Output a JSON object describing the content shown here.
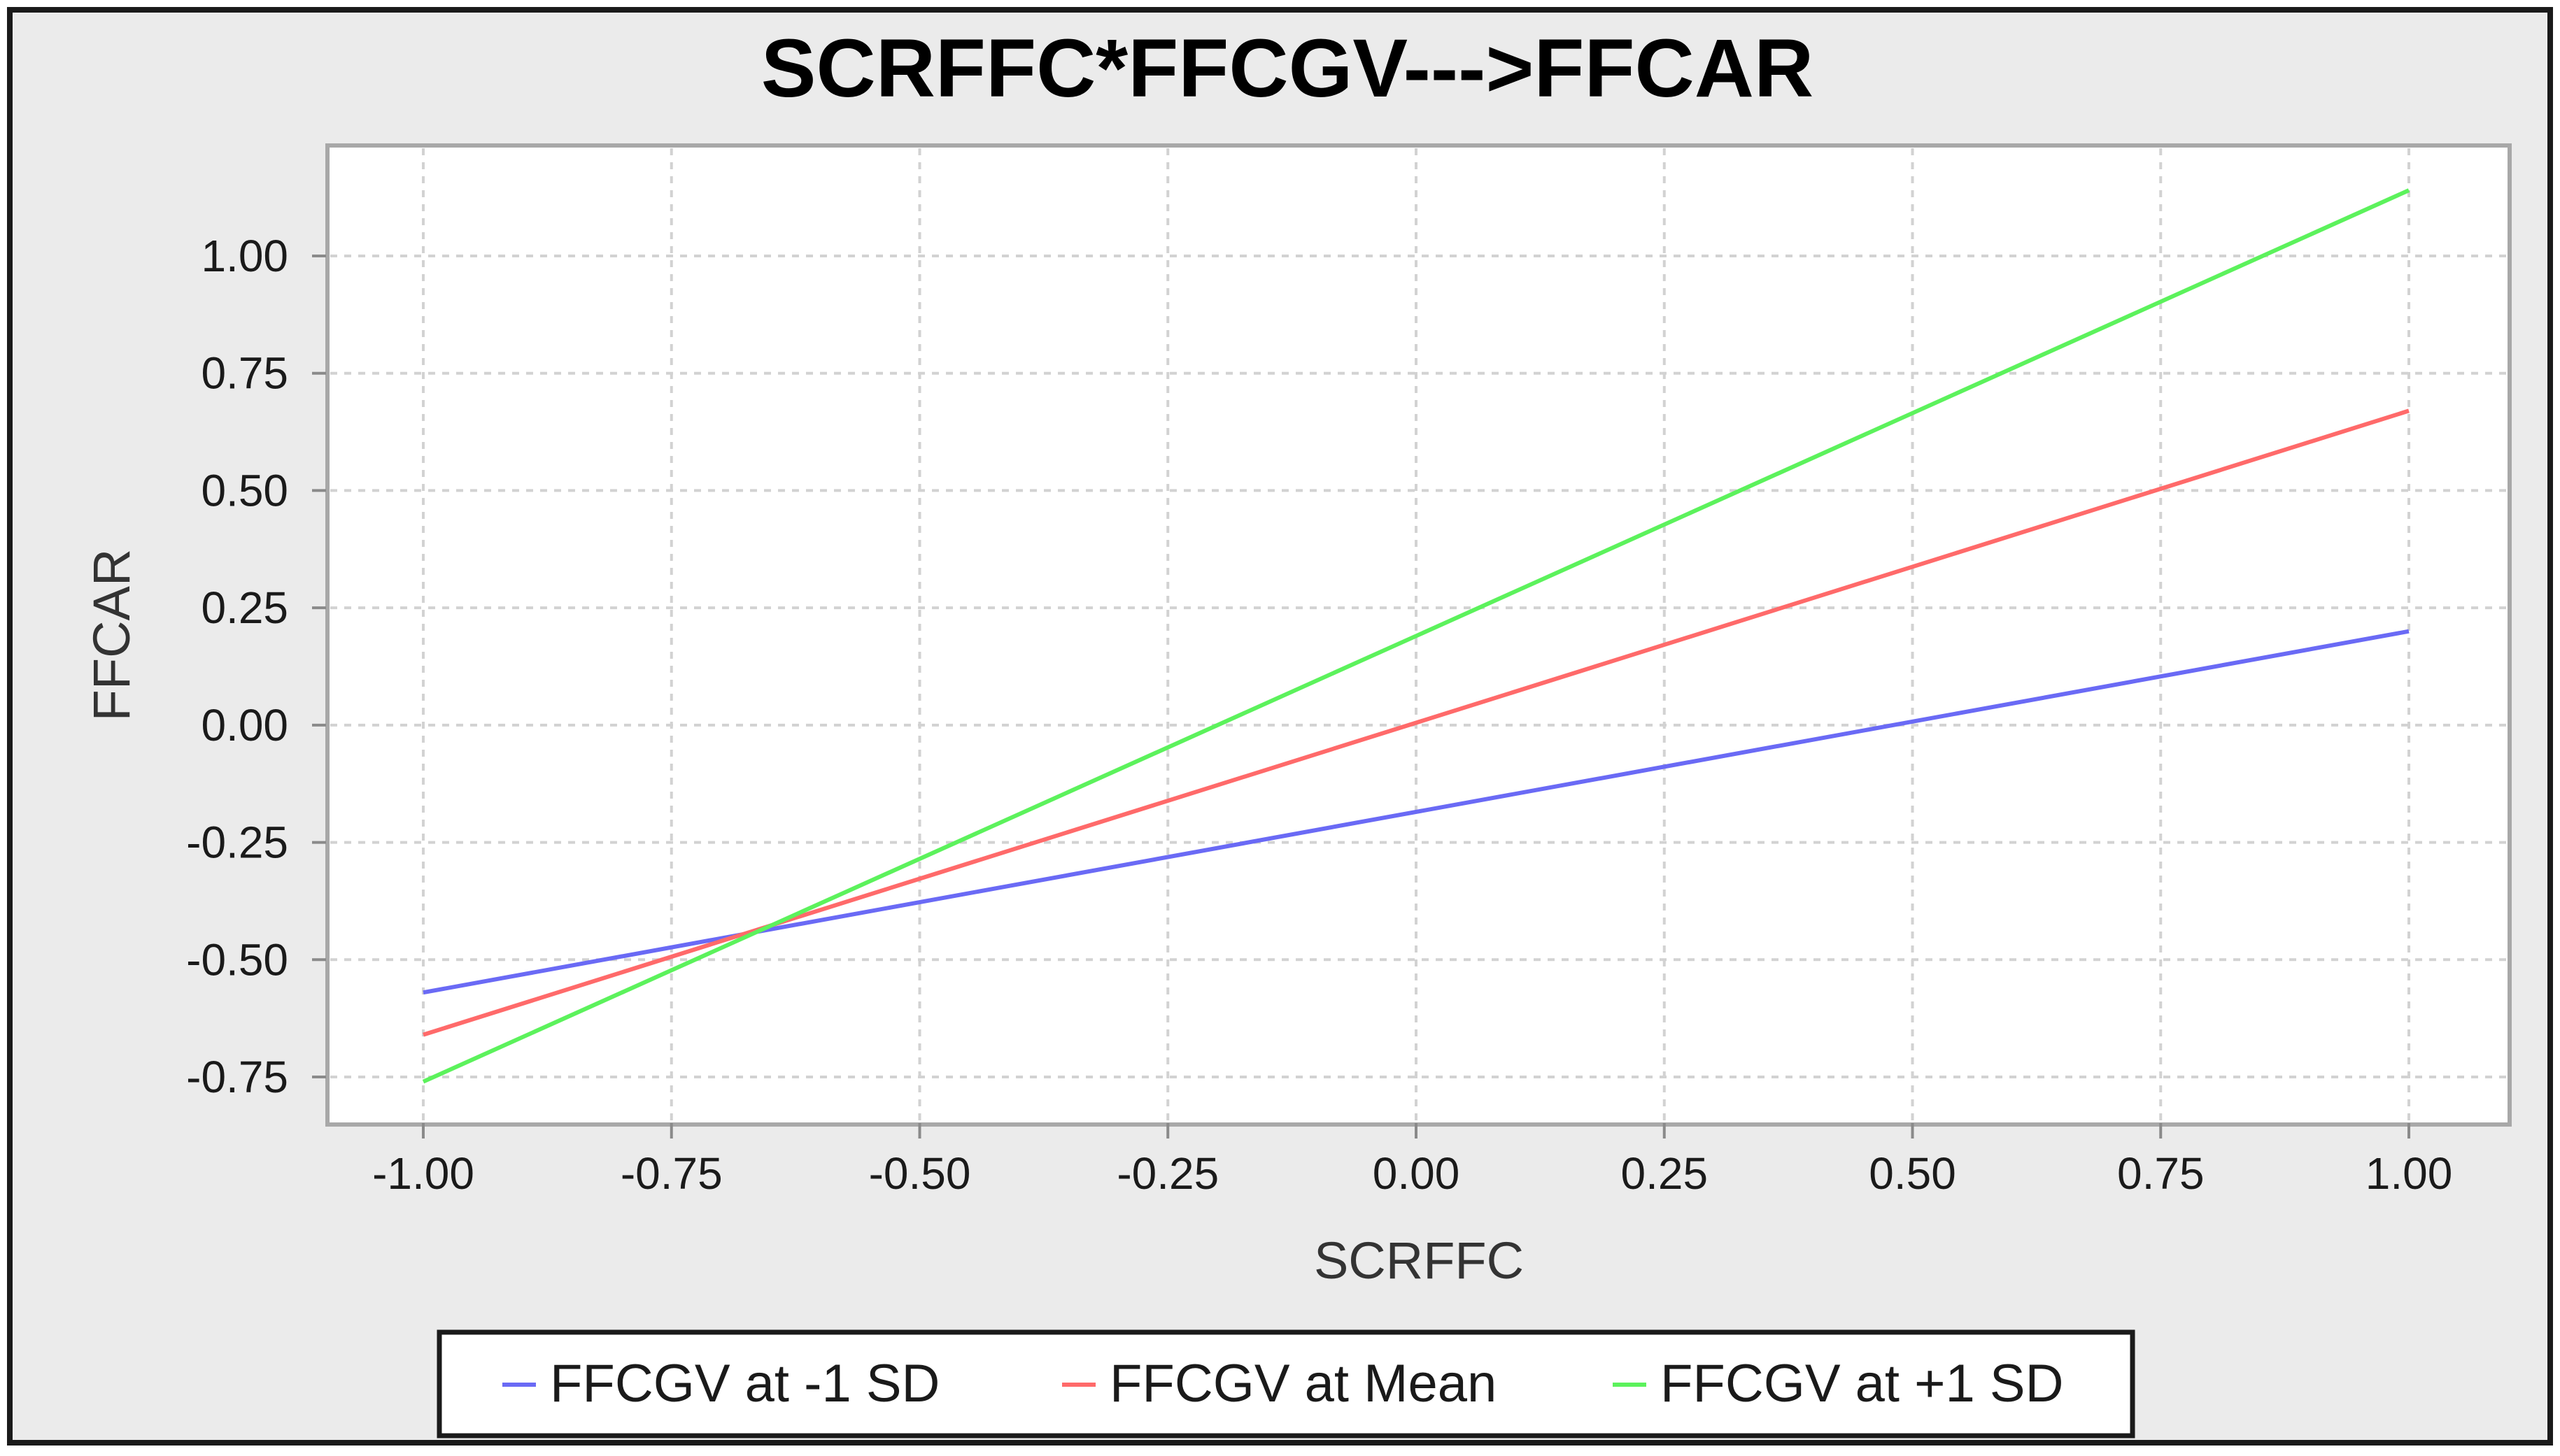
{
  "chart_data": {
    "type": "line",
    "title": "SCRFFC*FFCGV--->FFCAR",
    "xlabel": "SCRFFC",
    "ylabel": "FFCAR",
    "xlim": [
      -1.0,
      1.0
    ],
    "ylim": [
      -0.85,
      1.25
    ],
    "x_ticks": [
      "-1.00",
      "-0.75",
      "-0.50",
      "-0.25",
      "0.00",
      "0.25",
      "0.50",
      "0.75",
      "1.00"
    ],
    "y_ticks": [
      "-0.75",
      "-0.50",
      "-0.25",
      "0.00",
      "0.25",
      "0.50",
      "0.75",
      "1.00"
    ],
    "grid": true,
    "legend_position": "bottom",
    "series": [
      {
        "name": "FFCGV at -1 SD",
        "color": "#6a6af5",
        "x": [
          -1.0,
          1.0
        ],
        "y": [
          -0.57,
          0.2
        ]
      },
      {
        "name": "FFCGV at Mean",
        "color": "#ff6a6a",
        "x": [
          -1.0,
          1.0
        ],
        "y": [
          -0.66,
          0.67
        ]
      },
      {
        "name": "FFCGV at +1 SD",
        "color": "#5cf25c",
        "x": [
          -1.0,
          1.0
        ],
        "y": [
          -0.76,
          1.14
        ]
      }
    ]
  }
}
